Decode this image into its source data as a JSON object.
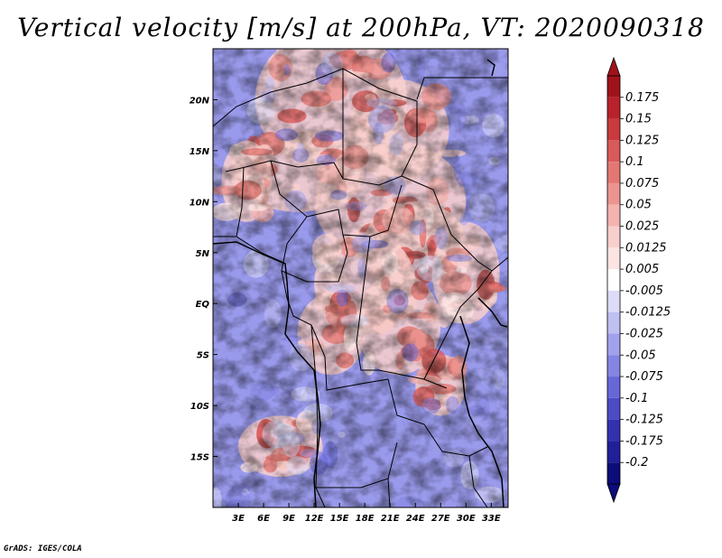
{
  "chart_data": {
    "type": "heatmap",
    "title": "Vertical velocity [m/s] at 200hPa, VT: 2020090318",
    "xlabel": "",
    "ylabel": "",
    "x_ticks": [
      "3E",
      "6E",
      "9E",
      "12E",
      "15E",
      "18E",
      "21E",
      "24E",
      "27E",
      "30E",
      "33E"
    ],
    "x_tick_values": [
      3,
      6,
      9,
      12,
      15,
      18,
      21,
      24,
      27,
      30,
      33
    ],
    "y_ticks": [
      "20N",
      "15N",
      "10N",
      "5N",
      "EQ",
      "5S",
      "10S",
      "15S"
    ],
    "y_tick_values": [
      20,
      15,
      10,
      5,
      0,
      -5,
      -10,
      -15
    ],
    "xlim": [
      0,
      35
    ],
    "ylim": [
      -20,
      25
    ],
    "colorbar": {
      "labels": [
        "0.175",
        "0.15",
        "0.125",
        "0.1",
        "0.075",
        "0.05",
        "0.025",
        "0.0125",
        "0.005",
        "-0.005",
        "-0.0125",
        "-0.025",
        "-0.05",
        "-0.075",
        "-0.1",
        "-0.125",
        "-0.175",
        "-0.2"
      ],
      "colors": [
        "#a0121a",
        "#b8232b",
        "#c93a3c",
        "#d85a59",
        "#e37873",
        "#ec9590",
        "#f3b3ae",
        "#f8cfcc",
        "#fbe4e2",
        "#ffffff",
        "#dcdcf8",
        "#bfbff2",
        "#a2a2ec",
        "#8585e4",
        "#6767d8",
        "#4b4bc6",
        "#3232b0",
        "#20209a",
        "#0c0c7a"
      ],
      "arrow_top_color": "#a0121a",
      "arrow_bottom_color": "#0c0c7a"
    }
  },
  "footer": "GrADS: IGES/COLA"
}
